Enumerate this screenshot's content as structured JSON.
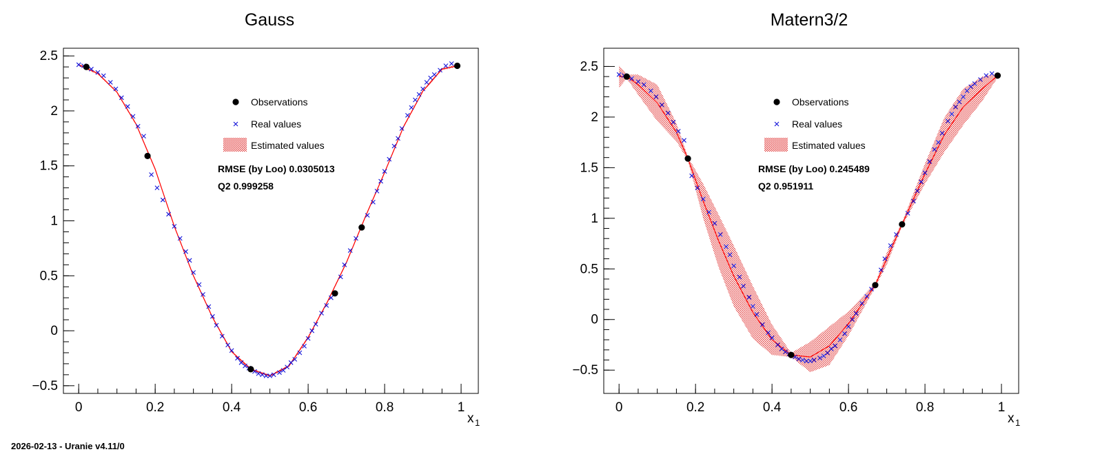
{
  "footer": "2026-02-13 - Uranie v4.11/0",
  "colors": {
    "estimate": "#ff0000",
    "band": "#ff6666",
    "real": "#1010d8",
    "obs": "#000000"
  },
  "chart_data": [
    {
      "type": "scatter",
      "title": "Gauss",
      "xlabel": "x",
      "xlabel_sub": "1",
      "xlim": [
        -0.04,
        1.045
      ],
      "ylim": [
        -0.57,
        2.57
      ],
      "xticks": [
        0,
        0.2,
        0.4,
        0.6,
        0.8,
        1
      ],
      "xtick_labels": [
        "0",
        "0.2",
        "0.4",
        "0.6",
        "0.8",
        "1"
      ],
      "yticks": [
        -0.5,
        0,
        0.5,
        1,
        1.5,
        2,
        2.5
      ],
      "ytick_labels": [
        "−0.5",
        "0",
        "0.5",
        "1",
        "1.5",
        "2",
        "2.5"
      ],
      "legend": [
        "Observations",
        "Real values",
        "Estimated values"
      ],
      "stats": [
        "RMSE (by Loo) 0.0305013",
        "Q2 0.999258"
      ],
      "observations": [
        [
          0.02,
          2.4
        ],
        [
          0.18,
          1.59
        ],
        [
          0.45,
          -0.35
        ],
        [
          0.67,
          0.34
        ],
        [
          0.74,
          0.94
        ],
        [
          0.99,
          2.41
        ]
      ],
      "real_x": [
        0,
        0.013,
        0.033,
        0.05,
        0.065,
        0.083,
        0.097,
        0.112,
        0.128,
        0.142,
        0.155,
        0.17,
        0.19,
        0.205,
        0.22,
        0.235,
        0.25,
        0.265,
        0.28,
        0.29,
        0.3,
        0.315,
        0.325,
        0.34,
        0.35,
        0.36,
        0.375,
        0.39,
        0.4,
        0.415,
        0.425,
        0.435,
        0.445,
        0.46,
        0.47,
        0.48,
        0.49,
        0.5,
        0.51,
        0.525,
        0.535,
        0.545,
        0.555,
        0.565,
        0.578,
        0.59,
        0.6,
        0.61,
        0.62,
        0.635,
        0.648,
        0.66,
        0.685,
        0.695,
        0.71,
        0.725,
        0.755,
        0.77,
        0.78,
        0.79,
        0.8,
        0.812,
        0.825,
        0.835,
        0.845,
        0.86,
        0.87,
        0.88,
        0.89,
        0.9,
        0.91,
        0.92,
        0.93,
        0.945,
        0.96,
        0.975
      ],
      "real_y": [
        2.42,
        2.41,
        2.38,
        2.35,
        2.32,
        2.26,
        2.2,
        2.12,
        2.04,
        1.95,
        1.86,
        1.77,
        1.42,
        1.3,
        1.19,
        1.06,
        0.95,
        0.84,
        0.72,
        0.64,
        0.53,
        0.42,
        0.33,
        0.22,
        0.13,
        0.05,
        -0.05,
        -0.13,
        -0.18,
        -0.25,
        -0.29,
        -0.32,
        -0.34,
        -0.37,
        -0.39,
        -0.4,
        -0.41,
        -0.41,
        -0.4,
        -0.38,
        -0.36,
        -0.33,
        -0.29,
        -0.26,
        -0.2,
        -0.14,
        -0.07,
        0,
        0.06,
        0.16,
        0.23,
        0.3,
        0.49,
        0.6,
        0.73,
        0.84,
        1.05,
        1.17,
        1.27,
        1.36,
        1.45,
        1.56,
        1.68,
        1.75,
        1.84,
        1.96,
        2.03,
        2.1,
        2.15,
        2.2,
        2.26,
        2.3,
        2.33,
        2.37,
        2.41,
        2.43
      ],
      "estimate_x": [
        0,
        0.05,
        0.1,
        0.15,
        0.2,
        0.25,
        0.3,
        0.35,
        0.4,
        0.45,
        0.5,
        0.55,
        0.6,
        0.65,
        0.7,
        0.75,
        0.8,
        0.85,
        0.9,
        0.95,
        0.99
      ],
      "estimate_y": [
        2.42,
        2.34,
        2.17,
        1.88,
        1.47,
        0.95,
        0.5,
        0.12,
        -0.19,
        -0.35,
        -0.41,
        -0.32,
        -0.06,
        0.26,
        0.62,
        1.04,
        1.44,
        1.86,
        2.18,
        2.38,
        2.41
      ],
      "band_halfwidth": [
        0.01,
        0.01,
        0.01,
        0.01,
        0.01,
        0.01,
        0.01,
        0.01,
        0.01,
        0.01,
        0.01,
        0.01,
        0.01,
        0.01,
        0.01,
        0.01,
        0.01,
        0.01,
        0.01,
        0.01,
        0.01
      ]
    },
    {
      "type": "scatter",
      "title": "Matern3/2",
      "xlabel": "x",
      "xlabel_sub": "1",
      "xlim": [
        -0.04,
        1.045
      ],
      "ylim": [
        -0.73,
        2.68
      ],
      "xticks": [
        0,
        0.2,
        0.4,
        0.6,
        0.8,
        1
      ],
      "xtick_labels": [
        "0",
        "0.2",
        "0.4",
        "0.6",
        "0.8",
        "1"
      ],
      "yticks": [
        -0.5,
        0,
        0.5,
        1,
        1.5,
        2,
        2.5
      ],
      "ytick_labels": [
        "−0.5",
        "0",
        "0.5",
        "1",
        "1.5",
        "2",
        "2.5"
      ],
      "legend": [
        "Observations",
        "Real values",
        "Estimated values"
      ],
      "stats": [
        "RMSE (by Loo) 0.245489",
        "Q2 0.951911"
      ],
      "observations": [
        [
          0.02,
          2.4
        ],
        [
          0.18,
          1.59
        ],
        [
          0.45,
          -0.35
        ],
        [
          0.67,
          0.34
        ],
        [
          0.74,
          0.94
        ],
        [
          0.99,
          2.41
        ]
      ],
      "real_x": [
        0,
        0.013,
        0.033,
        0.05,
        0.065,
        0.083,
        0.097,
        0.112,
        0.128,
        0.142,
        0.155,
        0.17,
        0.19,
        0.205,
        0.22,
        0.235,
        0.25,
        0.265,
        0.28,
        0.29,
        0.3,
        0.315,
        0.325,
        0.34,
        0.35,
        0.36,
        0.375,
        0.39,
        0.4,
        0.415,
        0.425,
        0.435,
        0.445,
        0.46,
        0.47,
        0.48,
        0.49,
        0.5,
        0.51,
        0.525,
        0.535,
        0.545,
        0.555,
        0.565,
        0.578,
        0.59,
        0.6,
        0.61,
        0.62,
        0.635,
        0.648,
        0.66,
        0.685,
        0.695,
        0.71,
        0.725,
        0.755,
        0.77,
        0.78,
        0.79,
        0.8,
        0.812,
        0.825,
        0.835,
        0.845,
        0.86,
        0.87,
        0.88,
        0.89,
        0.9,
        0.91,
        0.92,
        0.93,
        0.945,
        0.96,
        0.975
      ],
      "real_y": [
        2.42,
        2.41,
        2.38,
        2.35,
        2.32,
        2.26,
        2.2,
        2.12,
        2.04,
        1.95,
        1.86,
        1.77,
        1.42,
        1.3,
        1.19,
        1.06,
        0.95,
        0.84,
        0.72,
        0.64,
        0.53,
        0.42,
        0.33,
        0.22,
        0.13,
        0.05,
        -0.05,
        -0.13,
        -0.18,
        -0.25,
        -0.29,
        -0.32,
        -0.34,
        -0.37,
        -0.39,
        -0.4,
        -0.41,
        -0.41,
        -0.4,
        -0.38,
        -0.36,
        -0.33,
        -0.29,
        -0.26,
        -0.2,
        -0.14,
        -0.07,
        0,
        0.06,
        0.16,
        0.23,
        0.3,
        0.49,
        0.6,
        0.73,
        0.84,
        1.05,
        1.17,
        1.27,
        1.36,
        1.45,
        1.56,
        1.68,
        1.75,
        1.84,
        1.96,
        2.03,
        2.1,
        2.15,
        2.2,
        2.26,
        2.3,
        2.33,
        2.37,
        2.41,
        2.43
      ],
      "estimate_x": [
        0,
        0.02,
        0.05,
        0.1,
        0.15,
        0.18,
        0.22,
        0.26,
        0.3,
        0.35,
        0.4,
        0.45,
        0.5,
        0.55,
        0.6,
        0.67,
        0.7,
        0.74,
        0.8,
        0.85,
        0.9,
        0.95,
        0.99
      ],
      "estimate_y": [
        2.4,
        2.4,
        2.32,
        2.14,
        1.85,
        1.59,
        1.17,
        0.78,
        0.43,
        0.07,
        -0.2,
        -0.35,
        -0.37,
        -0.26,
        -0.04,
        0.34,
        0.6,
        0.94,
        1.44,
        1.82,
        2.1,
        2.28,
        2.41
      ],
      "band_halfwidth": [
        0.11,
        0.02,
        0.1,
        0.18,
        0.09,
        0.02,
        0.17,
        0.26,
        0.3,
        0.26,
        0.15,
        0.02,
        0.15,
        0.19,
        0.12,
        0.02,
        0.06,
        0.02,
        0.1,
        0.17,
        0.18,
        0.12,
        0.02
      ]
    }
  ]
}
